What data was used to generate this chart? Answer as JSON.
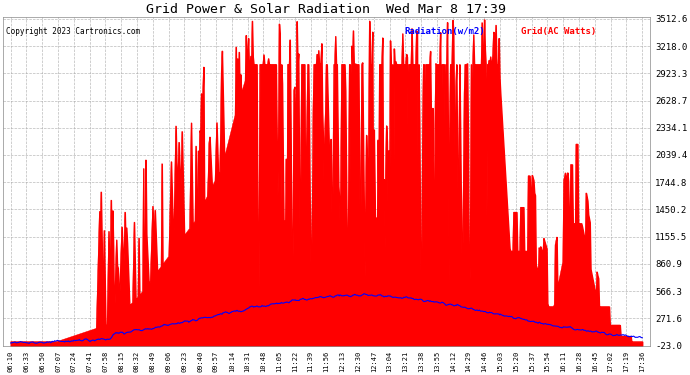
{
  "title": "Grid Power & Solar Radiation  Wed Mar 8 17:39",
  "copyright": "Copyright 2023 Cartronics.com",
  "legend_radiation": "Radiation(w/m2)",
  "legend_grid": "Grid(AC Watts)",
  "yticks": [
    3512.6,
    3218.0,
    2923.3,
    2628.7,
    2334.1,
    2039.4,
    1744.8,
    1450.2,
    1155.5,
    860.9,
    566.3,
    271.6,
    -23.0
  ],
  "ymin": -23.0,
  "ymax": 3512.6,
  "background_color": "#ffffff",
  "plot_bg_color": "#ffffff",
  "grid_color": "#aaaaaa",
  "radiation_color": "#0000ff",
  "grid_power_color": "#ff0000",
  "grid_power_fill": "#ff0000",
  "xtick_labels": [
    "06:10",
    "06:33",
    "06:50",
    "07:07",
    "07:24",
    "07:41",
    "07:58",
    "08:15",
    "08:32",
    "08:49",
    "09:06",
    "09:23",
    "09:40",
    "09:57",
    "10:14",
    "10:31",
    "10:48",
    "11:05",
    "11:22",
    "11:39",
    "11:56",
    "12:13",
    "12:30",
    "12:47",
    "13:04",
    "13:21",
    "13:38",
    "13:55",
    "14:12",
    "14:29",
    "14:46",
    "15:03",
    "15:20",
    "15:37",
    "15:54",
    "16:11",
    "16:28",
    "16:45",
    "17:02",
    "17:19",
    "17:36"
  ]
}
